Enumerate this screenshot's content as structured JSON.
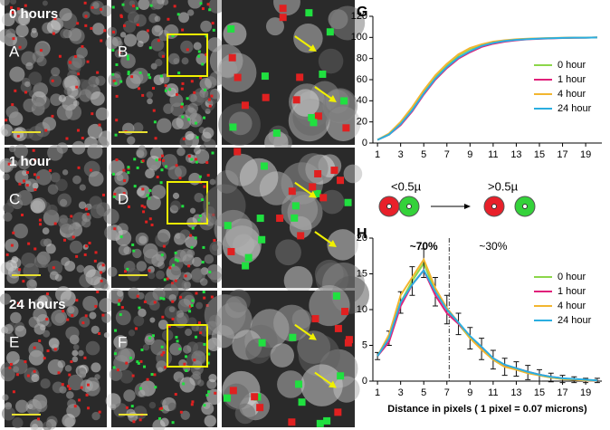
{
  "image_panels": {
    "rows": [
      {
        "time": "0 hours",
        "letters": [
          "A",
          "B"
        ]
      },
      {
        "time": "1 hour",
        "letters": [
          "C",
          "D"
        ]
      },
      {
        "time": "24 hours",
        "letters": [
          "E",
          "F"
        ]
      }
    ]
  },
  "distance_diagram": {
    "left": "<0.5µ",
    "right": ">0.5µ"
  },
  "chart_data": [
    {
      "type": "line",
      "label": "G",
      "x": [
        1,
        2,
        3,
        4,
        5,
        6,
        7,
        8,
        9,
        10,
        11,
        12,
        13,
        14,
        15,
        16,
        17,
        18,
        19,
        20
      ],
      "xlim": [
        0.6,
        20.4
      ],
      "xticks": [
        1,
        3,
        5,
        7,
        9,
        11,
        13,
        15,
        17,
        19
      ],
      "ylim": [
        0,
        120
      ],
      "yticks": [
        0,
        20,
        40,
        60,
        80,
        100,
        120
      ],
      "legend": "right",
      "series": [
        {
          "name": "0 hour",
          "color": "#8cd64a",
          "values": [
            3,
            8,
            19,
            33,
            49,
            63,
            74,
            83,
            89,
            93,
            95.5,
            97,
            98,
            98.6,
            99,
            99.3,
            99.5,
            99.7,
            99.8,
            100
          ]
        },
        {
          "name": "1 hour",
          "color": "#e0207a",
          "values": [
            3,
            8,
            17,
            30,
            46,
            60,
            71,
            80,
            86,
            91,
            94,
            96,
            97.3,
            98.2,
            98.7,
            99.1,
            99.4,
            99.6,
            99.8,
            100
          ]
        },
        {
          "name": "4 hour",
          "color": "#f2b630",
          "values": [
            3,
            9,
            20,
            34,
            50,
            64,
            75,
            84,
            90,
            93.5,
            96,
            97.3,
            98.2,
            98.8,
            99.1,
            99.4,
            99.6,
            99.8,
            99.9,
            100
          ]
        },
        {
          "name": "24 hour",
          "color": "#2aaee0",
          "values": [
            3,
            8,
            18,
            31,
            47,
            61,
            72,
            81,
            87,
            92,
            94.8,
            96.6,
            97.7,
            98.4,
            98.9,
            99.2,
            99.5,
            99.7,
            99.8,
            100
          ]
        }
      ]
    },
    {
      "type": "line",
      "label": "H",
      "x": [
        1,
        2,
        3,
        4,
        5,
        6,
        7,
        8,
        9,
        10,
        11,
        12,
        13,
        14,
        15,
        16,
        17,
        18,
        19,
        20
      ],
      "xlim": [
        0.6,
        20.4
      ],
      "xticks": [
        1,
        3,
        5,
        7,
        9,
        11,
        13,
        15,
        17,
        19
      ],
      "ylim": [
        0,
        20
      ],
      "yticks": [
        0,
        5,
        10,
        15,
        20
      ],
      "x_label": "Distance in pixels ( 1 pixel = 0.07 microns)",
      "annotations": [
        "~70%",
        "~30%"
      ],
      "threshold_x": 7.2,
      "legend": "right",
      "series": [
        {
          "name": "0 hour",
          "color": "#8cd64a",
          "values": [
            3.5,
            6,
            11,
            14,
            16.5,
            12.5,
            10,
            8,
            6,
            4.5,
            3,
            2,
            1.7,
            1.2,
            0.8,
            0.5,
            0.3,
            0.2,
            0.1,
            0.1
          ],
          "errors": [
            0.5,
            1,
            1.5,
            2,
            2,
            2,
            2,
            1.5,
            1.5,
            1.5,
            1.3,
            1.2,
            1,
            1,
            0.8,
            0.6,
            0.5,
            0.4,
            0.3,
            0.3
          ]
        },
        {
          "name": "1 hour",
          "color": "#e0207a",
          "values": [
            3.5,
            5.5,
            10.5,
            13.5,
            15.5,
            12,
            9.5,
            8,
            6.2,
            4.6,
            3.2,
            2.2,
            1.8,
            1.3,
            0.9,
            0.6,
            0.4,
            0.2,
            0.1,
            0.1
          ]
        },
        {
          "name": "4 hour",
          "color": "#f2b630",
          "values": [
            3.5,
            6.5,
            12,
            14.5,
            17,
            13,
            10.2,
            8.2,
            6,
            4.4,
            3,
            2,
            1.6,
            1.1,
            0.8,
            0.5,
            0.3,
            0.2,
            0.1,
            0.1
          ]
        },
        {
          "name": "24 hour",
          "color": "#2aaee0",
          "values": [
            3.5,
            6,
            11,
            13.5,
            15.5,
            12.5,
            10,
            8.2,
            6.3,
            4.8,
            3.2,
            2.3,
            1.8,
            1.3,
            0.9,
            0.6,
            0.4,
            0.3,
            0.2,
            0.1
          ]
        }
      ]
    }
  ]
}
